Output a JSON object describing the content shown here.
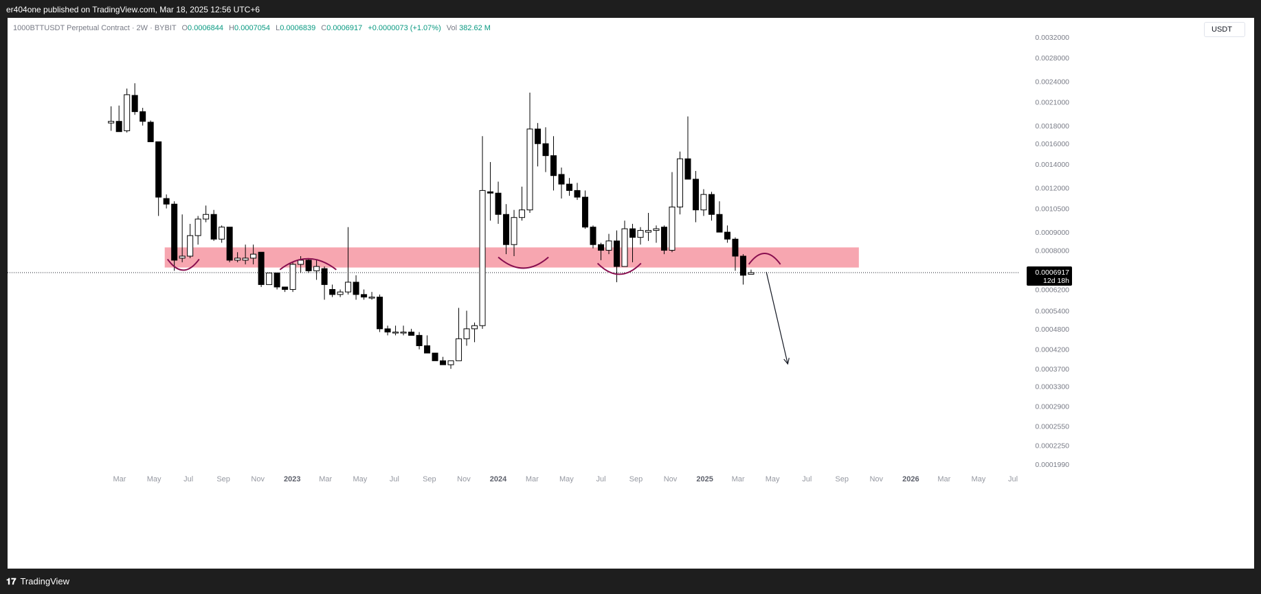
{
  "header": {
    "published": "er404one published on TradingView.com, Mar 18, 2025 12:56 UTC+6"
  },
  "legend": {
    "symbol": "1000BTTUSDT Perpetual Contract · 2W · BYBIT",
    "o_label": "O",
    "o_value": "0.0006844",
    "h_label": "H",
    "h_value": "0.0007054",
    "l_label": "L",
    "l_value": "0.0006839",
    "c_label": "C",
    "c_value": "0.0006917",
    "change": "+0.0000073 (+1.07%)",
    "vol_label": "Vol",
    "vol_value": "382.62 M"
  },
  "currency": "USDT",
  "price_label": {
    "value": "0.0006917",
    "countdown": "12d 18h"
  },
  "footer": {
    "brand": "TradingView",
    "logo_icon": "tradingview-logo-icon"
  },
  "colors": {
    "up": "#ffffff",
    "down": "#000000",
    "zone": "#f7a1ac",
    "arc": "#880e4f",
    "legend_value": "#089981"
  },
  "chart_data": {
    "type": "candlestick",
    "y_scale": "log",
    "y_ticks": [
      0.0032,
      0.0028,
      0.0024,
      0.0021,
      0.0018,
      0.0016,
      0.0014,
      0.0012,
      0.00105,
      0.0009,
      0.0008,
      0.0006917,
      0.00062,
      0.00054,
      0.00048,
      0.00042,
      0.00037,
      0.00033,
      0.00029,
      0.000255,
      0.000225,
      0.000199
    ],
    "y_tick_labels": [
      "0.0032000",
      "0.0028000",
      "0.0024000",
      "0.0021000",
      "0.0018000",
      "0.0016000",
      "0.0014000",
      "0.0012000",
      "0.0010500",
      "0.0009000",
      "0.0008000",
      "",
      "0.0006200",
      "0.0005400",
      "0.0004800",
      "0.0004200",
      "0.0003700",
      "0.0003300",
      "0.0002900",
      "0.0002550",
      "0.0002250",
      "0.0001990"
    ],
    "x_axis_labels": [
      {
        "label": "Mar",
        "date": "2022-03-01",
        "bold": false
      },
      {
        "label": "May",
        "date": "2022-05-01",
        "bold": false
      },
      {
        "label": "Jul",
        "date": "2022-07-01",
        "bold": false
      },
      {
        "label": "Sep",
        "date": "2022-09-01",
        "bold": false
      },
      {
        "label": "Nov",
        "date": "2022-11-01",
        "bold": false
      },
      {
        "label": "2023",
        "date": "2023-01-01",
        "bold": true
      },
      {
        "label": "Mar",
        "date": "2023-03-01",
        "bold": false
      },
      {
        "label": "May",
        "date": "2023-05-01",
        "bold": false
      },
      {
        "label": "Jul",
        "date": "2023-07-01",
        "bold": false
      },
      {
        "label": "Sep",
        "date": "2023-09-01",
        "bold": false
      },
      {
        "label": "Nov",
        "date": "2023-11-01",
        "bold": false
      },
      {
        "label": "2024",
        "date": "2024-01-01",
        "bold": true
      },
      {
        "label": "Mar",
        "date": "2024-03-01",
        "bold": false
      },
      {
        "label": "May",
        "date": "2024-05-01",
        "bold": false
      },
      {
        "label": "Jul",
        "date": "2024-07-01",
        "bold": false
      },
      {
        "label": "Sep",
        "date": "2024-09-01",
        "bold": false
      },
      {
        "label": "Nov",
        "date": "2024-11-01",
        "bold": false
      },
      {
        "label": "2025",
        "date": "2025-01-01",
        "bold": true
      },
      {
        "label": "Mar",
        "date": "2025-03-01",
        "bold": false
      },
      {
        "label": "May",
        "date": "2025-05-01",
        "bold": false
      },
      {
        "label": "Jul",
        "date": "2025-07-01",
        "bold": false
      },
      {
        "label": "Sep",
        "date": "2025-09-01",
        "bold": false
      },
      {
        "label": "Nov",
        "date": "2025-11-01",
        "bold": false
      },
      {
        "label": "2026",
        "date": "2026-01-01",
        "bold": true
      },
      {
        "label": "Mar",
        "date": "2026-03-01",
        "bold": false
      },
      {
        "label": "May",
        "date": "2026-05-01",
        "bold": false
      },
      {
        "label": "Jul",
        "date": "2026-07-01",
        "bold": false
      }
    ],
    "candles": [
      {
        "date": "2022-02-14",
        "o": 0.00183,
        "h": 0.00204,
        "l": 0.00174,
        "c": 0.00185
      },
      {
        "date": "2022-02-28",
        "o": 0.00185,
        "h": 0.00205,
        "l": 0.00173,
        "c": 0.00173
      },
      {
        "date": "2022-03-14",
        "o": 0.00174,
        "h": 0.00229,
        "l": 0.00172,
        "c": 0.0022
      },
      {
        "date": "2022-03-28",
        "o": 0.00219,
        "h": 0.00237,
        "l": 0.00193,
        "c": 0.00197
      },
      {
        "date": "2022-04-11",
        "o": 0.00197,
        "h": 0.00202,
        "l": 0.0018,
        "c": 0.00185
      },
      {
        "date": "2022-04-25",
        "o": 0.00184,
        "h": 0.00186,
        "l": 0.00162,
        "c": 0.00162
      },
      {
        "date": "2022-05-09",
        "o": 0.00162,
        "h": 0.00162,
        "l": 0.001,
        "c": 0.00113
      },
      {
        "date": "2022-05-23",
        "o": 0.00112,
        "h": 0.00115,
        "l": 0.00105,
        "c": 0.00108
      },
      {
        "date": "2022-06-06",
        "o": 0.00108,
        "h": 0.0011,
        "l": 0.0007,
        "c": 0.00075
      },
      {
        "date": "2022-06-20",
        "o": 0.00076,
        "h": 0.00101,
        "l": 0.00074,
        "c": 0.00077
      },
      {
        "date": "2022-07-04",
        "o": 0.00077,
        "h": 0.00095,
        "l": 0.00076,
        "c": 0.00088
      },
      {
        "date": "2022-07-18",
        "o": 0.00088,
        "h": 0.001,
        "l": 0.00083,
        "c": 0.00098
      },
      {
        "date": "2022-08-01",
        "o": 0.00098,
        "h": 0.00107,
        "l": 0.00096,
        "c": 0.00101
      },
      {
        "date": "2022-08-15",
        "o": 0.00101,
        "h": 0.00104,
        "l": 0.00085,
        "c": 0.00086
      },
      {
        "date": "2022-08-29",
        "o": 0.00086,
        "h": 0.00094,
        "l": 0.00084,
        "c": 0.00093
      },
      {
        "date": "2022-09-12",
        "o": 0.00093,
        "h": 0.00093,
        "l": 0.00074,
        "c": 0.00075
      },
      {
        "date": "2022-09-26",
        "o": 0.00075,
        "h": 0.00079,
        "l": 0.00074,
        "c": 0.00076
      },
      {
        "date": "2022-10-10",
        "o": 0.00075,
        "h": 0.00083,
        "l": 0.00073,
        "c": 0.00076
      },
      {
        "date": "2022-10-24",
        "o": 0.00076,
        "h": 0.00083,
        "l": 0.00073,
        "c": 0.00078
      },
      {
        "date": "2022-11-07",
        "o": 0.00079,
        "h": 0.00079,
        "l": 0.00063,
        "c": 0.00064
      },
      {
        "date": "2022-11-21",
        "o": 0.00064,
        "h": 0.00069,
        "l": 0.00064,
        "c": 0.00069
      },
      {
        "date": "2022-12-05",
        "o": 0.00069,
        "h": 0.00069,
        "l": 0.00062,
        "c": 0.00063
      },
      {
        "date": "2022-12-19",
        "o": 0.00063,
        "h": 0.00063,
        "l": 0.00061,
        "c": 0.00062
      },
      {
        "date": "2023-01-02",
        "o": 0.00062,
        "h": 0.00074,
        "l": 0.00061,
        "c": 0.00073
      },
      {
        "date": "2023-01-16",
        "o": 0.00073,
        "h": 0.00077,
        "l": 0.00069,
        "c": 0.00075
      },
      {
        "date": "2023-01-30",
        "o": 0.00075,
        "h": 0.00076,
        "l": 0.00069,
        "c": 0.0007
      },
      {
        "date": "2023-02-13",
        "o": 0.0007,
        "h": 0.00075,
        "l": 0.00066,
        "c": 0.00072
      },
      {
        "date": "2023-02-27",
        "o": 0.00071,
        "h": 0.00072,
        "l": 0.00058,
        "c": 0.00064
      },
      {
        "date": "2023-03-13",
        "o": 0.00062,
        "h": 0.00064,
        "l": 0.00059,
        "c": 0.0006
      },
      {
        "date": "2023-03-27",
        "o": 0.0006,
        "h": 0.00062,
        "l": 0.00059,
        "c": 0.00061
      },
      {
        "date": "2023-04-10",
        "o": 0.00061,
        "h": 0.00093,
        "l": 0.0006,
        "c": 0.00065
      },
      {
        "date": "2023-04-24",
        "o": 0.00065,
        "h": 0.00068,
        "l": 0.00058,
        "c": 0.0006
      },
      {
        "date": "2023-05-08",
        "o": 0.0006,
        "h": 0.00062,
        "l": 0.00058,
        "c": 0.00059
      },
      {
        "date": "2023-05-22",
        "o": 0.00059,
        "h": 0.00061,
        "l": 0.00058,
        "c": 0.00059
      },
      {
        "date": "2023-06-05",
        "o": 0.00059,
        "h": 0.0006,
        "l": 0.00047,
        "c": 0.00048
      },
      {
        "date": "2023-06-19",
        "o": 0.00048,
        "h": 0.00049,
        "l": 0.00046,
        "c": 0.00047
      },
      {
        "date": "2023-07-03",
        "o": 0.00047,
        "h": 0.00049,
        "l": 0.00046,
        "c": 0.00047
      },
      {
        "date": "2023-07-17",
        "o": 0.00047,
        "h": 0.00049,
        "l": 0.00046,
        "c": 0.00047
      },
      {
        "date": "2023-07-31",
        "o": 0.00047,
        "h": 0.00048,
        "l": 0.00046,
        "c": 0.00046
      },
      {
        "date": "2023-08-14",
        "o": 0.00046,
        "h": 0.00047,
        "l": 0.00042,
        "c": 0.00043
      },
      {
        "date": "2023-08-28",
        "o": 0.00043,
        "h": 0.00046,
        "l": 0.00041,
        "c": 0.00041
      },
      {
        "date": "2023-09-11",
        "o": 0.00041,
        "h": 0.00041,
        "l": 0.00039,
        "c": 0.00039
      },
      {
        "date": "2023-09-25",
        "o": 0.00039,
        "h": 0.0004,
        "l": 0.00038,
        "c": 0.00038
      },
      {
        "date": "2023-10-09",
        "o": 0.00038,
        "h": 0.00039,
        "l": 0.00037,
        "c": 0.00039
      },
      {
        "date": "2023-10-23",
        "o": 0.00039,
        "h": 0.00055,
        "l": 0.00039,
        "c": 0.00045
      },
      {
        "date": "2023-11-06",
        "o": 0.00045,
        "h": 0.00054,
        "l": 0.00043,
        "c": 0.00048
      },
      {
        "date": "2023-11-20",
        "o": 0.00048,
        "h": 0.0005,
        "l": 0.00044,
        "c": 0.00049
      },
      {
        "date": "2023-12-04",
        "o": 0.00049,
        "h": 0.00168,
        "l": 0.00048,
        "c": 0.00118
      },
      {
        "date": "2023-12-18",
        "o": 0.00117,
        "h": 0.00142,
        "l": 0.00097,
        "c": 0.00116
      },
      {
        "date": "2024-01-01",
        "o": 0.00116,
        "h": 0.00125,
        "l": 0.00095,
        "c": 0.00101
      },
      {
        "date": "2024-01-15",
        "o": 0.00101,
        "h": 0.00108,
        "l": 0.00078,
        "c": 0.00083
      },
      {
        "date": "2024-01-29",
        "o": 0.00083,
        "h": 0.00104,
        "l": 0.00077,
        "c": 0.00099
      },
      {
        "date": "2024-02-12",
        "o": 0.00099,
        "h": 0.00121,
        "l": 0.00097,
        "c": 0.00104
      },
      {
        "date": "2024-02-26",
        "o": 0.00104,
        "h": 0.00223,
        "l": 0.00102,
        "c": 0.00176
      },
      {
        "date": "2024-03-11",
        "o": 0.00176,
        "h": 0.00183,
        "l": 0.00138,
        "c": 0.0016
      },
      {
        "date": "2024-03-25",
        "o": 0.0016,
        "h": 0.00178,
        "l": 0.00133,
        "c": 0.00148
      },
      {
        "date": "2024-04-08",
        "o": 0.00148,
        "h": 0.00168,
        "l": 0.00118,
        "c": 0.0013
      },
      {
        "date": "2024-04-22",
        "o": 0.00131,
        "h": 0.00137,
        "l": 0.00112,
        "c": 0.00123
      },
      {
        "date": "2024-05-06",
        "o": 0.00123,
        "h": 0.00128,
        "l": 0.00114,
        "c": 0.00118
      },
      {
        "date": "2024-05-20",
        "o": 0.00118,
        "h": 0.00124,
        "l": 0.00111,
        "c": 0.00113
      },
      {
        "date": "2024-06-03",
        "o": 0.00113,
        "h": 0.00118,
        "l": 0.00092,
        "c": 0.00093
      },
      {
        "date": "2024-06-17",
        "o": 0.00093,
        "h": 0.00094,
        "l": 0.00081,
        "c": 0.00083
      },
      {
        "date": "2024-07-01",
        "o": 0.00083,
        "h": 0.00084,
        "l": 0.00075,
        "c": 0.0008
      },
      {
        "date": "2024-07-15",
        "o": 0.0008,
        "h": 0.00089,
        "l": 0.00078,
        "c": 0.00085
      },
      {
        "date": "2024-07-29",
        "o": 0.00085,
        "h": 0.00091,
        "l": 0.00065,
        "c": 0.00072
      },
      {
        "date": "2024-08-12",
        "o": 0.00072,
        "h": 0.00097,
        "l": 0.00072,
        "c": 0.00092
      },
      {
        "date": "2024-08-26",
        "o": 0.00092,
        "h": 0.00095,
        "l": 0.00074,
        "c": 0.00087
      },
      {
        "date": "2024-09-09",
        "o": 0.00087,
        "h": 0.00093,
        "l": 0.00083,
        "c": 0.00091
      },
      {
        "date": "2024-09-23",
        "o": 0.0009,
        "h": 0.00102,
        "l": 0.00085,
        "c": 0.00091
      },
      {
        "date": "2024-10-07",
        "o": 0.00091,
        "h": 0.00094,
        "l": 0.00084,
        "c": 0.00092
      },
      {
        "date": "2024-10-21",
        "o": 0.00093,
        "h": 0.00094,
        "l": 0.00078,
        "c": 0.0008
      },
      {
        "date": "2024-11-04",
        "o": 0.0008,
        "h": 0.00133,
        "l": 0.00079,
        "c": 0.00106
      },
      {
        "date": "2024-11-18",
        "o": 0.00106,
        "h": 0.00152,
        "l": 0.00101,
        "c": 0.00145
      },
      {
        "date": "2024-12-02",
        "o": 0.00145,
        "h": 0.00191,
        "l": 0.00128,
        "c": 0.00127
      },
      {
        "date": "2024-12-16",
        "o": 0.00127,
        "h": 0.00134,
        "l": 0.00096,
        "c": 0.00104
      },
      {
        "date": "2024-12-30",
        "o": 0.00104,
        "h": 0.00119,
        "l": 0.001,
        "c": 0.00115
      },
      {
        "date": "2025-01-13",
        "o": 0.00115,
        "h": 0.00117,
        "l": 0.00097,
        "c": 0.00101
      },
      {
        "date": "2025-01-27",
        "o": 0.00101,
        "h": 0.0011,
        "l": 0.0009,
        "c": 0.0009
      },
      {
        "date": "2025-02-10",
        "o": 0.0009,
        "h": 0.00094,
        "l": 0.00084,
        "c": 0.00086
      },
      {
        "date": "2025-02-24",
        "o": 0.00086,
        "h": 0.00087,
        "l": 0.0007,
        "c": 0.00077
      },
      {
        "date": "2025-03-10",
        "o": 0.00077,
        "h": 0.00078,
        "l": 0.00064,
        "c": 0.00068
      },
      {
        "date": "2025-03-24",
        "o": 0.0006844,
        "h": 0.0007054,
        "l": 0.0006839,
        "c": 0.0006917
      }
    ],
    "resistance_zone": {
      "top": 0.000815,
      "bottom": 0.000715,
      "from": "2022-05-20",
      "to": "2025-10-01"
    },
    "arcs": [
      {
        "from": "2022-05-25",
        "to": "2022-07-20",
        "level": 0.000755,
        "kind": "cup"
      },
      {
        "from": "2022-12-10",
        "to": "2023-03-20",
        "level": 0.000705,
        "kind": "cap"
      },
      {
        "from": "2024-01-01",
        "to": "2024-03-30",
        "level": 0.000765,
        "kind": "cup"
      },
      {
        "from": "2024-06-25",
        "to": "2024-09-10",
        "level": 0.000735,
        "kind": "cup"
      },
      {
        "from": "2025-03-20",
        "to": "2025-05-15",
        "level": 0.00073,
        "kind": "cap"
      }
    ],
    "projection_arrow": {
      "from_date": "2025-04-20",
      "from_price": 0.000695,
      "to_date": "2025-05-28",
      "to_price": 0.000382
    },
    "current_price": 0.0006917
  }
}
